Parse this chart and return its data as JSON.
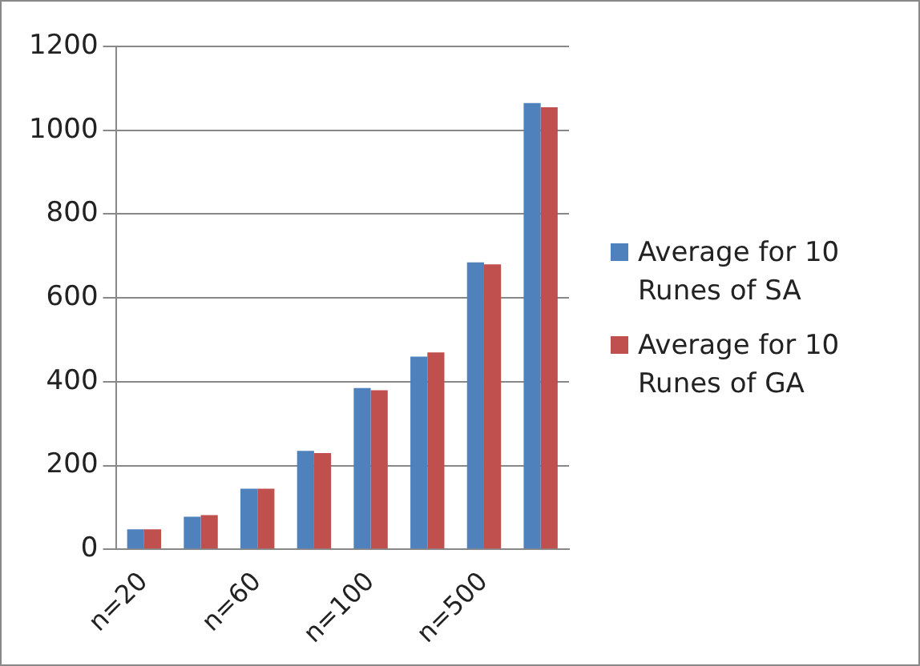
{
  "chart_data": {
    "type": "bar",
    "categories": [
      "n=20",
      null,
      "n=60",
      null,
      "n=100",
      null,
      "n=500",
      null
    ],
    "series": [
      {
        "name": "Average for 10 Runes of SA",
        "color": "#4f81bd",
        "values": [
          48,
          78,
          145,
          235,
          385,
          460,
          685,
          1065
        ]
      },
      {
        "name": "Average for 10 Runes of GA",
        "color": "#c0504d",
        "values": [
          48,
          82,
          145,
          230,
          380,
          470,
          680,
          1055
        ]
      }
    ],
    "ylim": [
      0,
      1200
    ],
    "yticks": [
      0,
      200,
      400,
      600,
      800,
      1000,
      1200
    ],
    "grid": "y",
    "legend": "right"
  }
}
